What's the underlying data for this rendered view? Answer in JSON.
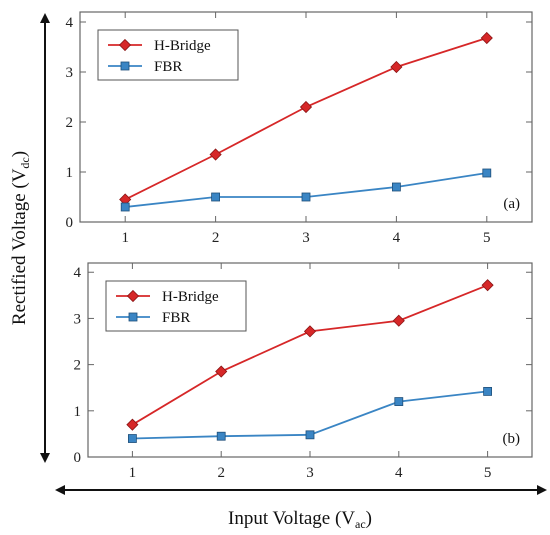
{
  "figure": {
    "y_axis_title": "Rectified Voltage (V",
    "y_axis_title_sub": "dc",
    "y_axis_title_close": ")",
    "x_axis_title": "Input Voltage (V",
    "x_axis_title_sub": "ac",
    "x_axis_title_close": ")",
    "colors": {
      "h_bridge": "#d62728",
      "fbr": "#3a85c4",
      "frame": "#666666"
    }
  },
  "chart_data": [
    {
      "type": "line",
      "panel_label": "(a)",
      "x": [
        1,
        2,
        3,
        4,
        5
      ],
      "xlim": [
        0.5,
        5.5
      ],
      "ylim": [
        0,
        4.2
      ],
      "x_ticks": [
        "1",
        "2",
        "3",
        "4",
        "5"
      ],
      "y_ticks": [
        "0",
        "1",
        "2",
        "3",
        "4"
      ],
      "grid": false,
      "legend_position": "top-left",
      "series": [
        {
          "name": "H-Bridge",
          "marker": "diamond",
          "color": "#d62728",
          "values": [
            0.45,
            1.35,
            2.3,
            3.1,
            3.68
          ]
        },
        {
          "name": "FBR",
          "marker": "square",
          "color": "#3a85c4",
          "values": [
            0.3,
            0.5,
            0.5,
            0.7,
            0.98
          ]
        }
      ]
    },
    {
      "type": "line",
      "panel_label": "(b)",
      "x": [
        1,
        2,
        3,
        4,
        5
      ],
      "xlim": [
        0.5,
        5.5
      ],
      "ylim": [
        0,
        4.2
      ],
      "x_ticks": [
        "1",
        "2",
        "3",
        "4",
        "5"
      ],
      "y_ticks": [
        "0",
        "1",
        "2",
        "3",
        "4"
      ],
      "grid": false,
      "legend_position": "top-left",
      "series": [
        {
          "name": "H-Bridge",
          "marker": "diamond",
          "color": "#d62728",
          "values": [
            0.7,
            1.85,
            2.72,
            2.95,
            3.72
          ]
        },
        {
          "name": "FBR",
          "marker": "square",
          "color": "#3a85c4",
          "values": [
            0.4,
            0.45,
            0.48,
            1.2,
            1.42
          ]
        }
      ]
    }
  ]
}
